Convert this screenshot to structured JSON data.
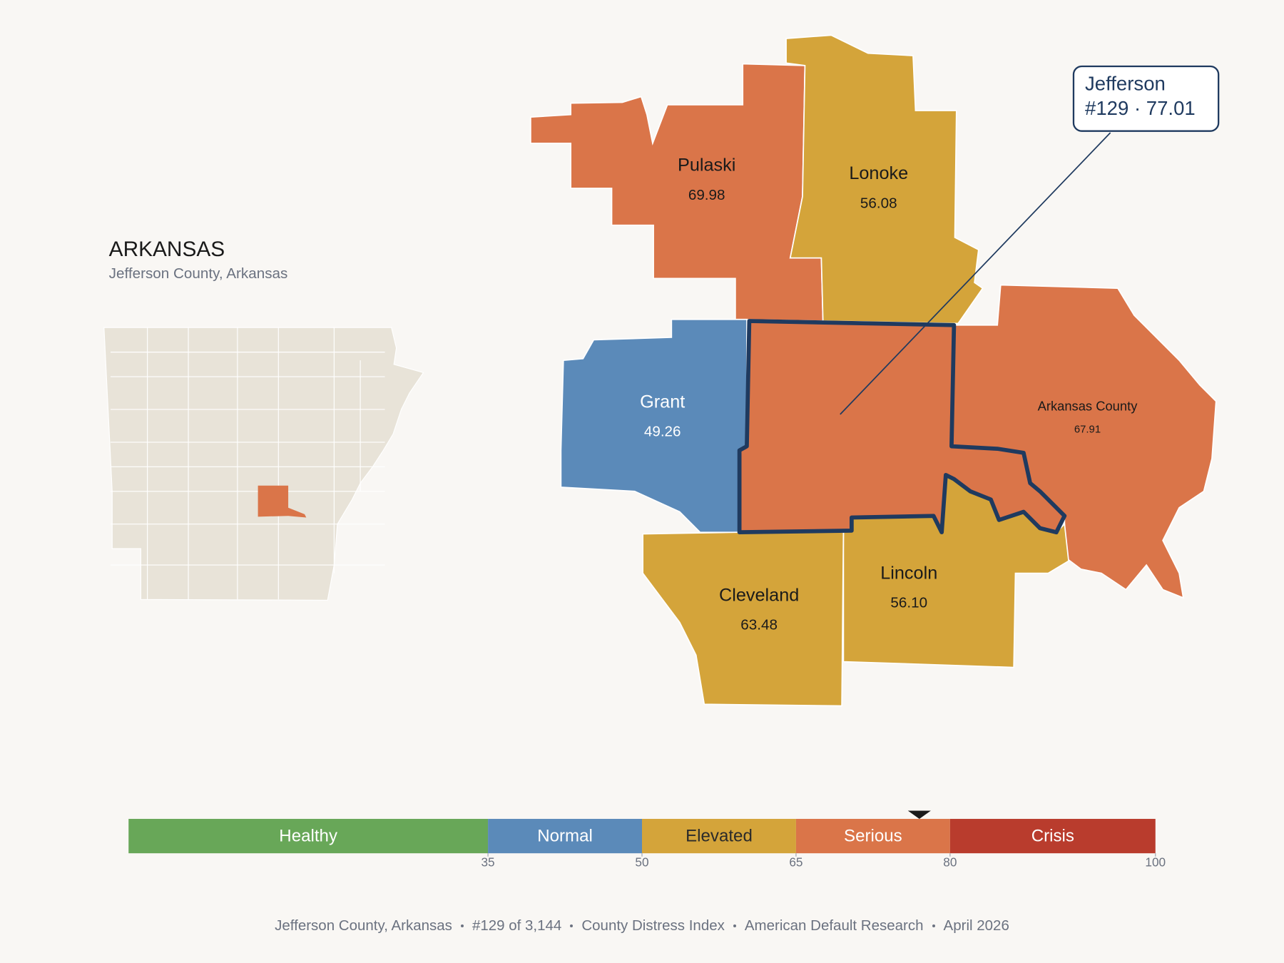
{
  "header": {
    "title": "ARKANSAS",
    "subtitle": "Jefferson County, Arkansas"
  },
  "callout": {
    "name": "Jefferson",
    "detail": "#129 · 77.01",
    "index_value": 77.01
  },
  "counties": [
    {
      "name": "Pulaski",
      "score": "69.98",
      "color": "#DA7549"
    },
    {
      "name": "Lonoke",
      "score": "56.08",
      "color": "#D4A43A"
    },
    {
      "name": "Grant",
      "score": "49.26",
      "color": "#5B8AB9"
    },
    {
      "name": "Arkansas County",
      "score": "67.91",
      "color": "#DA7549"
    },
    {
      "name": "Lincoln",
      "score": "56.10",
      "color": "#D4A43A"
    },
    {
      "name": "Cleveland",
      "score": "63.48",
      "color": "#D4A43A"
    }
  ],
  "selected_county_color": "#DA7549",
  "outline_color": "#1F3A5F",
  "state_color": "#E8E3D8",
  "scale": {
    "range": [
      0,
      100
    ],
    "ticks": [
      35,
      50,
      65,
      80,
      100
    ],
    "bands": [
      {
        "label": "Healthy",
        "color": "#68A758",
        "label_color": "#ffffff"
      },
      {
        "label": "Normal",
        "color": "#5B8AB9",
        "label_color": "#ffffff"
      },
      {
        "label": "Elevated",
        "color": "#D4A43A",
        "label_color": "#2a2a2a"
      },
      {
        "label": "Serious",
        "color": "#DA7549",
        "label_color": "#ffffff"
      },
      {
        "label": "Crisis",
        "color": "#B93C2D",
        "label_color": "#ffffff"
      }
    ]
  },
  "footer": [
    "Jefferson County, Arkansas",
    "#129 of 3,144",
    "County Distress Index",
    "American Default Research",
    "April 2026"
  ]
}
